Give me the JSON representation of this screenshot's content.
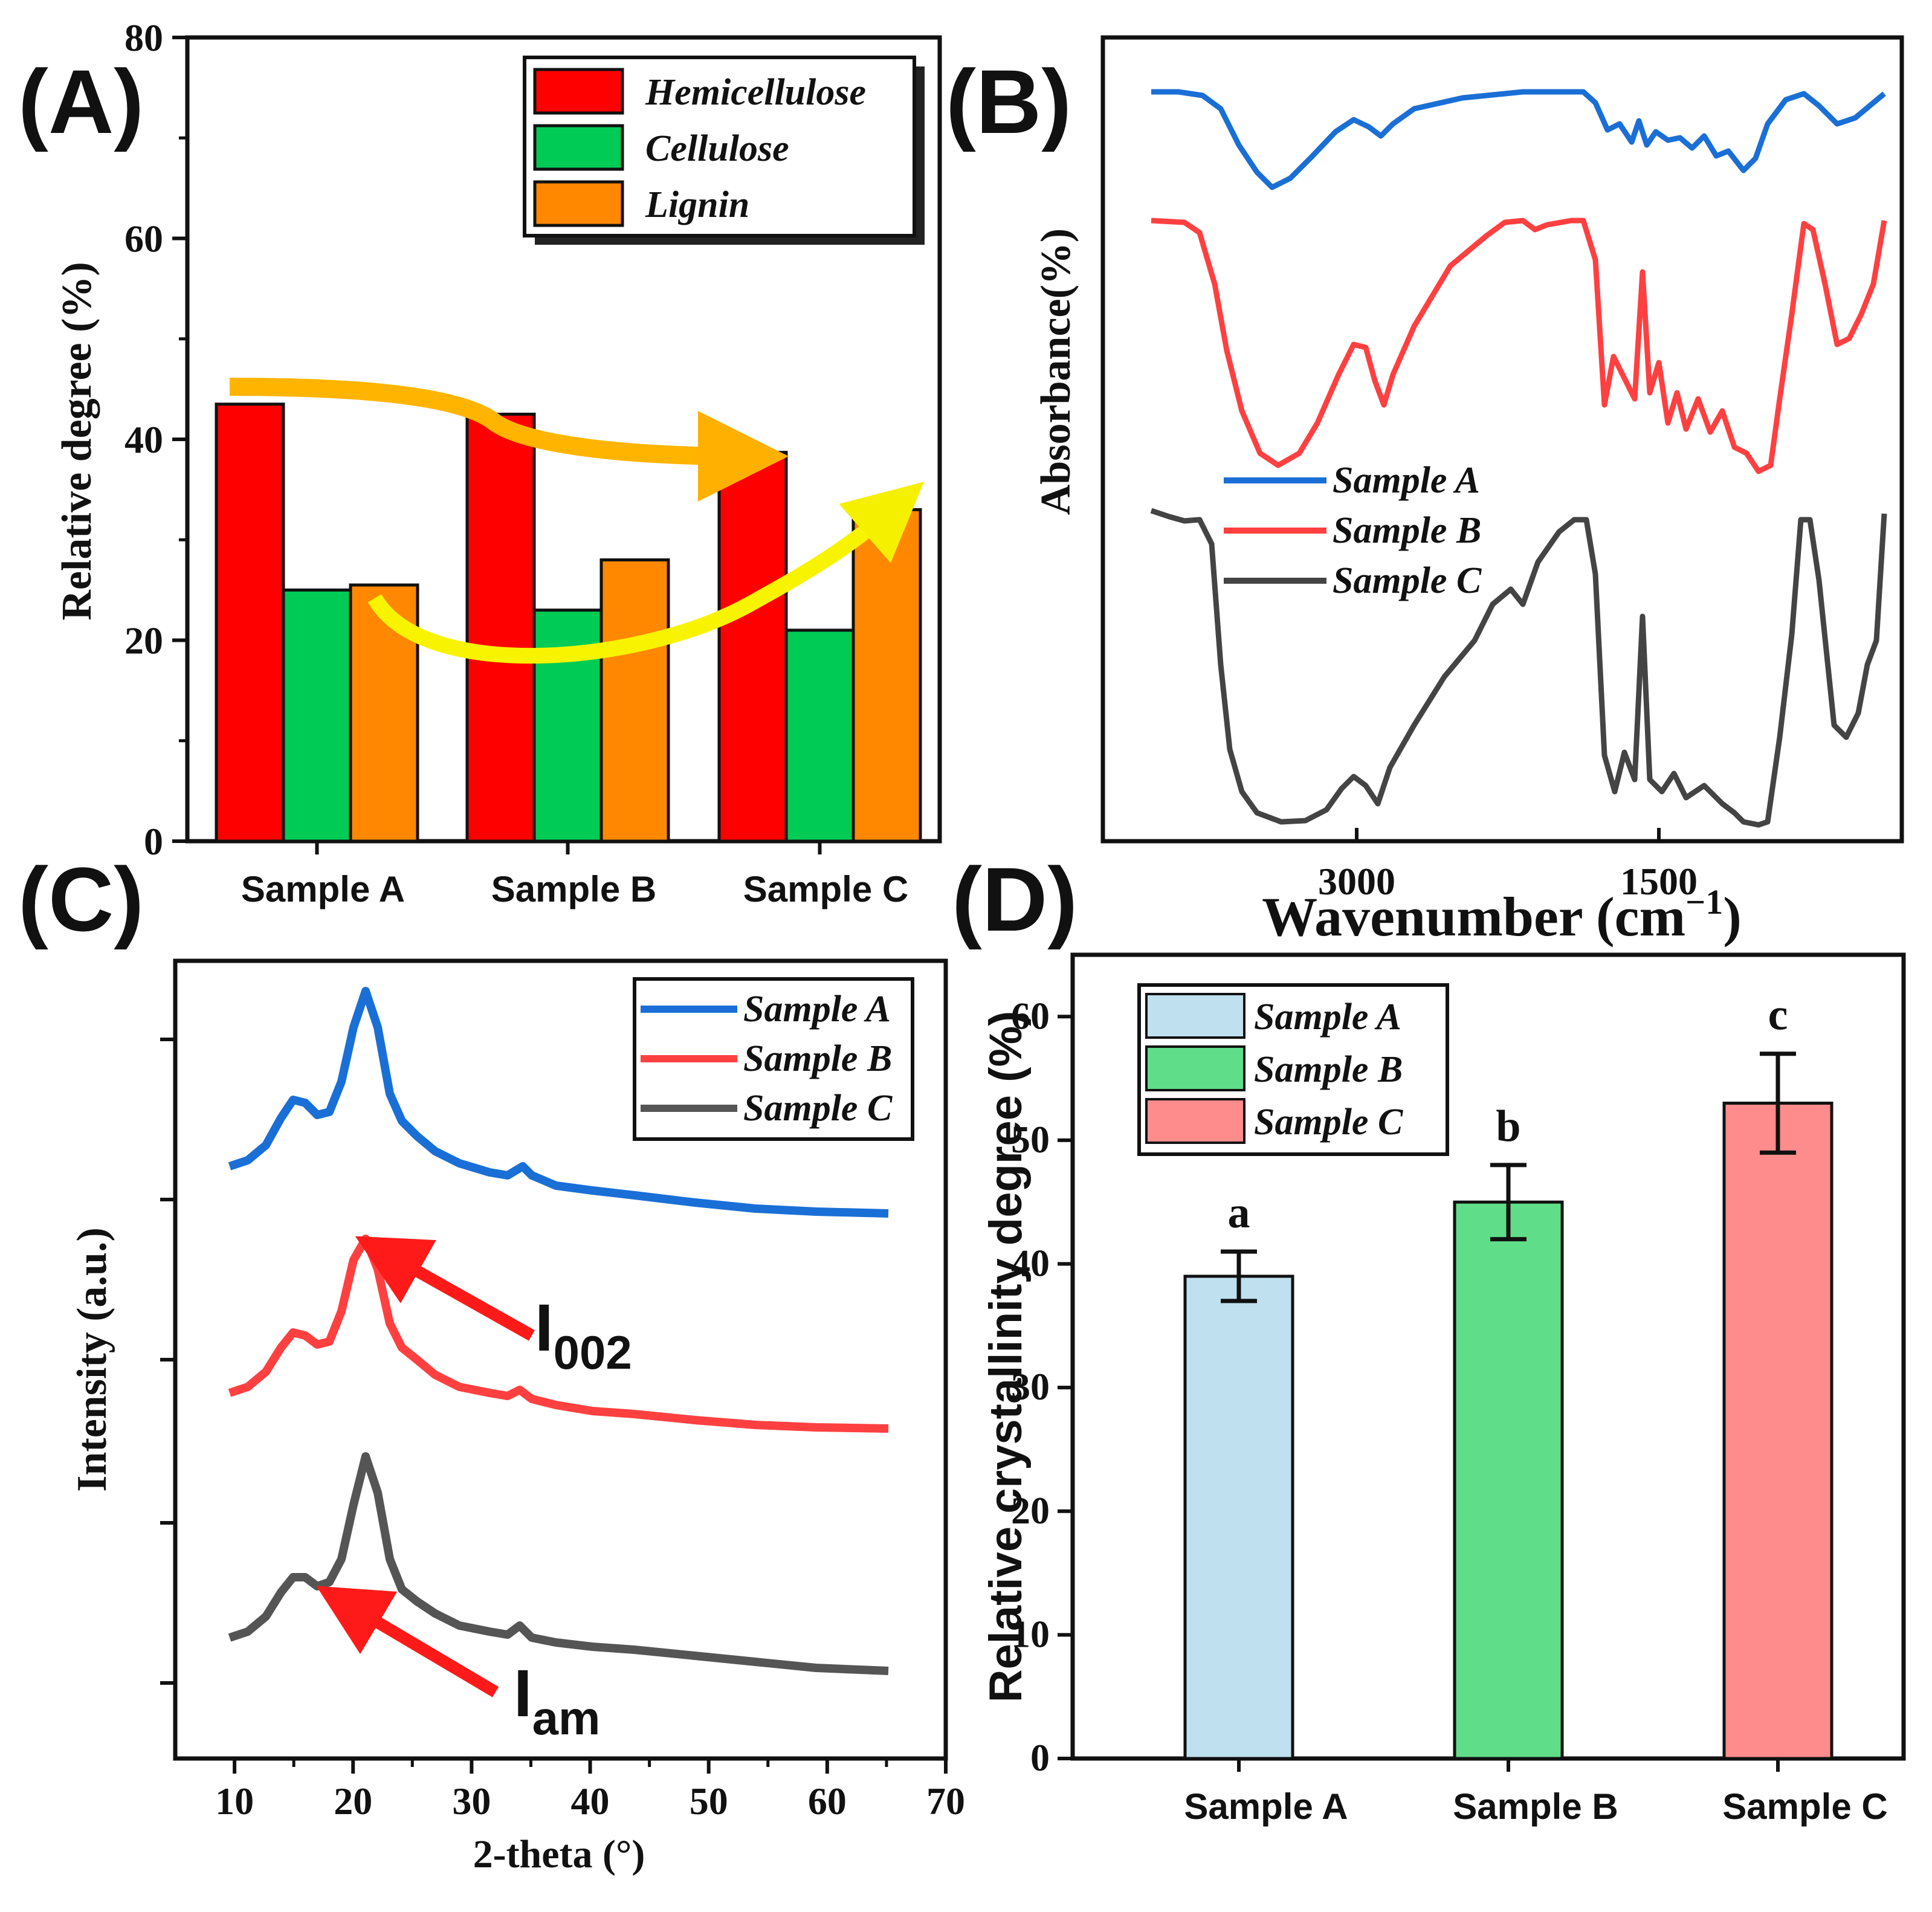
{
  "chart_data": [
    {
      "panel": "(A)",
      "type": "bar",
      "categories": [
        "Sample A",
        "Sample B",
        "Sample C"
      ],
      "series": [
        {
          "name": "Hemicellulose",
          "values": [
            43.5,
            42.5,
            38.7
          ],
          "color": "#ff0000"
        },
        {
          "name": "Cellulose",
          "values": [
            25,
            23,
            21
          ],
          "color": "#00cc55"
        },
        {
          "name": "Lignin",
          "values": [
            25.5,
            28,
            33
          ],
          "color": "#ff8800"
        }
      ],
      "ylabel": "Relative degree (%)",
      "ylim": [
        0,
        80
      ],
      "yticks": [
        0,
        20,
        40,
        60,
        80
      ],
      "legend_position": "top-right",
      "annotations": [
        "decreasing arrow over Hemicellulose",
        "increasing arrow over Lignin"
      ]
    },
    {
      "panel": "(B)",
      "type": "line",
      "title": "",
      "xlabel": "Wavenumber (cm",
      "xlabel_sup": "−1",
      "xlabel_close": ")",
      "ylabel": "Absorbance(%)",
      "xticks": [
        "3000",
        "1500"
      ],
      "x_reversed": true,
      "series": [
        {
          "name": "Sample A",
          "color": "#1a6fd6"
        },
        {
          "name": "Sample B",
          "color": "#ff4040"
        },
        {
          "name": "Sample C",
          "color": "#444444"
        }
      ],
      "legend_position": "middle-left"
    },
    {
      "panel": "(C)",
      "type": "line",
      "xlabel": "2-theta (°)",
      "ylabel": "Intensity (a.u.)",
      "xlim": [
        5,
        70
      ],
      "xticks": [
        10,
        20,
        30,
        40,
        50,
        60,
        70
      ],
      "series": [
        {
          "name": "Sample A",
          "color": "#1a6fd6"
        },
        {
          "name": "Sample B",
          "color": "#ff4040"
        },
        {
          "name": "Sample C",
          "color": "#555555"
        }
      ],
      "peaks": {
        "I002": 22,
        "Iam": 18
      },
      "legend_position": "top-right"
    },
    {
      "panel": "(D)",
      "type": "bar",
      "categories": [
        "Sample A",
        "Sample B",
        "Sample C"
      ],
      "values": [
        39,
        45,
        53
      ],
      "errors": [
        2,
        3,
        4
      ],
      "significance": [
        "a",
        "b",
        "c"
      ],
      "colors": [
        "#bfe0ee",
        "#60dd88",
        "#ff8c8c"
      ],
      "ylabel": "Relative crystallinity degree (%)",
      "ylim": [
        0,
        65
      ],
      "yticks": [
        0,
        10,
        20,
        30,
        40,
        50,
        60
      ],
      "legend_position": "top-left"
    }
  ],
  "labels": {
    "A": "(A)",
    "B": "(B)",
    "C": "(C)",
    "D": "(D)",
    "i002_main": "I",
    "i002_sub": "002",
    "iam_main": "I",
    "iam_sub": "am"
  }
}
